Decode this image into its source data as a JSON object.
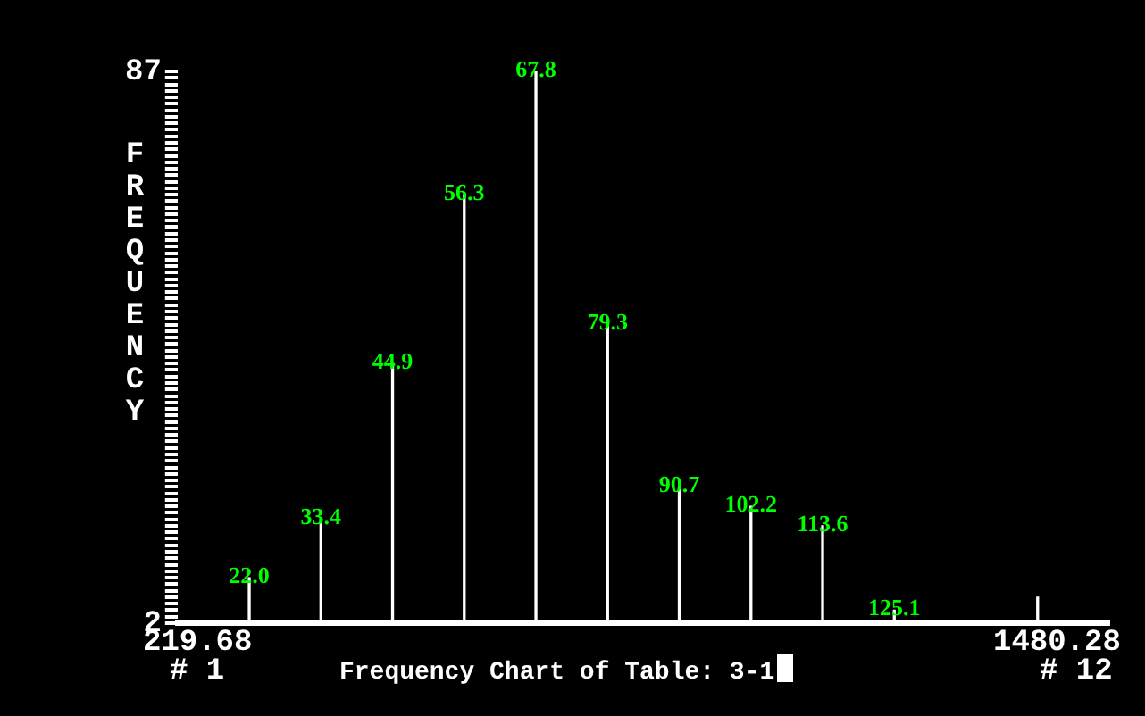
{
  "chart_data": {
    "type": "bar",
    "title": "Frequency Chart of Table: 3-1",
    "ylabel": "FREQUENCY",
    "categories": [
      "22.0",
      "33.4",
      "44.9",
      "56.3",
      "67.8",
      "79.3",
      "90.7",
      "102.2",
      "113.6",
      "125.1",
      null,
      null
    ],
    "values": [
      9,
      18,
      42,
      68,
      87,
      48,
      23,
      20,
      17,
      4,
      null,
      6
    ],
    "color": "#ffffff",
    "ylim": [
      2,
      87
    ],
    "yticks": [
      2,
      {
        "value": 3,
        "label": null
      },
      {
        "value": 4,
        "label": null
      },
      {
        "value": 5,
        "label": null
      },
      {
        "value": 6,
        "label": null
      },
      {
        "value": 7,
        "label": null
      },
      {
        "value": 8,
        "label": null
      },
      {
        "value": 9,
        "label": null
      },
      {
        "value": 10,
        "label": null
      },
      {
        "value": 11,
        "label": null
      },
      {
        "value": 12,
        "label": null
      },
      {
        "value": 13,
        "label": null
      },
      {
        "value": 14,
        "label": null
      },
      {
        "value": 15,
        "label": null
      },
      {
        "value": 16,
        "label": null
      },
      {
        "value": 17,
        "label": null
      },
      {
        "value": 18,
        "label": null
      },
      {
        "value": 19,
        "label": null
      },
      {
        "value": 20,
        "label": null
      },
      {
        "value": 21,
        "label": null
      },
      {
        "value": 22,
        "label": null
      },
      {
        "value": 23,
        "label": null
      },
      {
        "value": 24,
        "label": null
      },
      {
        "value": 25,
        "label": null
      },
      {
        "value": 26,
        "label": null
      },
      {
        "value": 27,
        "label": null
      },
      {
        "value": 28,
        "label": null
      },
      {
        "value": 29,
        "label": null
      },
      {
        "value": 30,
        "label": null
      },
      {
        "value": 31,
        "label": null
      },
      {
        "value": 32,
        "label": null
      },
      {
        "value": 33,
        "label": null
      },
      {
        "value": 34,
        "label": null
      },
      {
        "value": 35,
        "label": null
      },
      {
        "value": 36,
        "label": null
      },
      {
        "value": 37,
        "label": null
      },
      {
        "value": 38,
        "label": null
      },
      {
        "value": 39,
        "label": null
      },
      {
        "value": 40,
        "label": null
      },
      {
        "value": 41,
        "label": null
      },
      {
        "value": 42,
        "label": null
      },
      {
        "value": 43,
        "label": null
      },
      {
        "value": 44,
        "label": null
      },
      {
        "value": 45,
        "label": null
      },
      {
        "value": 46,
        "label": null
      },
      {
        "value": 47,
        "label": null
      },
      {
        "value": 48,
        "label": null
      },
      {
        "value": 49,
        "label": null
      },
      {
        "value": 50,
        "label": null
      },
      {
        "value": 51,
        "label": null
      },
      {
        "value": 52,
        "label": null
      },
      {
        "value": 53,
        "label": null
      },
      {
        "value": 54,
        "label": null
      },
      {
        "value": 55,
        "label": null
      },
      {
        "value": 56,
        "label": null
      },
      {
        "value": 57,
        "label": null
      },
      {
        "value": 58,
        "label": null
      },
      {
        "value": 59,
        "label": null
      },
      {
        "value": 60,
        "label": null
      },
      {
        "value": 61,
        "label": null
      },
      {
        "value": 62,
        "label": null
      },
      {
        "value": 63,
        "label": null
      },
      {
        "value": 64,
        "label": null
      },
      {
        "value": 65,
        "label": null
      },
      {
        "value": 66,
        "label": null
      },
      {
        "value": 67,
        "label": null
      },
      {
        "value": 68,
        "label": null
      },
      {
        "value": 69,
        "label": null
      },
      {
        "value": 70,
        "label": null
      },
      {
        "value": 71,
        "label": null
      },
      {
        "value": 72,
        "label": null
      },
      {
        "value": 73,
        "label": null
      },
      {
        "value": 74,
        "label": null
      },
      {
        "value": 75,
        "label": null
      },
      {
        "value": 76,
        "label": null
      },
      {
        "value": 77,
        "label": null
      },
      {
        "value": 78,
        "label": null
      },
      {
        "value": 79,
        "label": null
      },
      {
        "value": 80,
        "label": null
      },
      {
        "value": 81,
        "label": null
      },
      {
        "value": 82,
        "label": null
      },
      {
        "value": 83,
        "label": null
      },
      {
        "value": 84,
        "label": null
      },
      {
        "value": 85,
        "label": null
      },
      {
        "value": 86,
        "label": null
      },
      87
    ],
    "annotations": [
      "219.68",
      "# 1",
      "1480.28",
      "# 12"
    ],
    "grid": false,
    "legend": false
  }
}
